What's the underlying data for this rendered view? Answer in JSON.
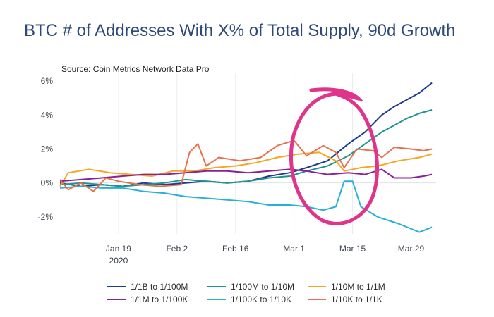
{
  "chart_data": {
    "type": "line",
    "title": "BTC # of Addresses With X% of Total Supply, 90d Growth",
    "source": "Source: Coin Metrics Network Data Pro",
    "ylim": [
      -3,
      6.5
    ],
    "yticks": [
      {
        "value": 6,
        "label": "6%"
      },
      {
        "value": 4,
        "label": "4%"
      },
      {
        "value": 2,
        "label": "2%"
      },
      {
        "value": 0,
        "label": "0%"
      },
      {
        "value": -2,
        "label": "-2%"
      }
    ],
    "xticks": [
      {
        "date": "2020-01-19",
        "label": "Jan 19",
        "sublabel": "2020"
      },
      {
        "date": "2020-02-02",
        "label": "Feb 2",
        "sublabel": ""
      },
      {
        "date": "2020-02-16",
        "label": "Feb 16",
        "sublabel": ""
      },
      {
        "date": "2020-03-01",
        "label": "Mar 1",
        "sublabel": ""
      },
      {
        "date": "2020-03-15",
        "label": "Mar 15",
        "sublabel": ""
      },
      {
        "date": "2020-03-29",
        "label": "Mar 29",
        "sublabel": ""
      }
    ],
    "x_range": [
      "2020-01-05",
      "2020-04-04"
    ],
    "grid": "vertical",
    "legend_position": "bottom",
    "series": [
      {
        "name": "1/1B to 1/100M",
        "color": "#1f3b8a",
        "points": [
          [
            "2020-01-05",
            0.0
          ],
          [
            "2020-01-10",
            -0.2
          ],
          [
            "2020-01-15",
            -0.1
          ],
          [
            "2020-01-20",
            -0.2
          ],
          [
            "2020-01-25",
            0.0
          ],
          [
            "2020-01-30",
            -0.1
          ],
          [
            "2020-02-04",
            0.0
          ],
          [
            "2020-02-09",
            0.1
          ],
          [
            "2020-02-14",
            0.0
          ],
          [
            "2020-02-19",
            0.1
          ],
          [
            "2020-02-24",
            0.4
          ],
          [
            "2020-02-29",
            0.6
          ],
          [
            "2020-03-04",
            0.9
          ],
          [
            "2020-03-09",
            1.3
          ],
          [
            "2020-03-14",
            2.3
          ],
          [
            "2020-03-18",
            3.0
          ],
          [
            "2020-03-22",
            4.0
          ],
          [
            "2020-03-25",
            4.5
          ],
          [
            "2020-03-28",
            4.9
          ],
          [
            "2020-03-31",
            5.3
          ],
          [
            "2020-04-03",
            5.9
          ]
        ]
      },
      {
        "name": "1/100M to 1/10M",
        "color": "#1f948e",
        "points": [
          [
            "2020-01-05",
            -0.1
          ],
          [
            "2020-01-10",
            0.0
          ],
          [
            "2020-01-15",
            -0.1
          ],
          [
            "2020-01-20",
            -0.2
          ],
          [
            "2020-01-25",
            -0.1
          ],
          [
            "2020-01-30",
            0.0
          ],
          [
            "2020-02-04",
            0.2
          ],
          [
            "2020-02-09",
            0.1
          ],
          [
            "2020-02-14",
            0.0
          ],
          [
            "2020-02-19",
            0.1
          ],
          [
            "2020-02-24",
            0.3
          ],
          [
            "2020-02-29",
            0.4
          ],
          [
            "2020-03-04",
            0.7
          ],
          [
            "2020-03-09",
            1.0
          ],
          [
            "2020-03-14",
            1.6
          ],
          [
            "2020-03-18",
            2.3
          ],
          [
            "2020-03-22",
            3.0
          ],
          [
            "2020-03-25",
            3.4
          ],
          [
            "2020-03-28",
            3.8
          ],
          [
            "2020-03-31",
            4.1
          ],
          [
            "2020-04-03",
            4.3
          ]
        ]
      },
      {
        "name": "1/10M to 1/1M",
        "color": "#f5a623",
        "points": [
          [
            "2020-01-05",
            -0.2
          ],
          [
            "2020-01-07",
            0.6
          ],
          [
            "2020-01-12",
            0.8
          ],
          [
            "2020-01-17",
            0.6
          ],
          [
            "2020-01-22",
            0.5
          ],
          [
            "2020-01-27",
            0.4
          ],
          [
            "2020-02-01",
            0.7
          ],
          [
            "2020-02-06",
            0.7
          ],
          [
            "2020-02-11",
            0.9
          ],
          [
            "2020-02-16",
            1.0
          ],
          [
            "2020-02-21",
            1.2
          ],
          [
            "2020-02-26",
            1.5
          ],
          [
            "2020-03-02",
            1.7
          ],
          [
            "2020-03-07",
            1.8
          ],
          [
            "2020-03-11",
            1.3
          ],
          [
            "2020-03-13",
            0.7
          ],
          [
            "2020-03-17",
            0.9
          ],
          [
            "2020-03-21",
            1.0
          ],
          [
            "2020-03-26",
            1.3
          ],
          [
            "2020-03-31",
            1.5
          ],
          [
            "2020-04-03",
            1.7
          ]
        ]
      },
      {
        "name": "1/1M to 1/100K",
        "color": "#8a1f9a",
        "points": [
          [
            "2020-01-05",
            0.1
          ],
          [
            "2020-01-10",
            0.2
          ],
          [
            "2020-01-15",
            0.3
          ],
          [
            "2020-01-20",
            0.4
          ],
          [
            "2020-01-25",
            0.5
          ],
          [
            "2020-01-30",
            0.5
          ],
          [
            "2020-02-04",
            0.6
          ],
          [
            "2020-02-09",
            0.7
          ],
          [
            "2020-02-14",
            0.7
          ],
          [
            "2020-02-19",
            0.6
          ],
          [
            "2020-02-24",
            0.7
          ],
          [
            "2020-02-29",
            0.8
          ],
          [
            "2020-03-04",
            0.7
          ],
          [
            "2020-03-09",
            0.5
          ],
          [
            "2020-03-14",
            0.6
          ],
          [
            "2020-03-18",
            0.5
          ],
          [
            "2020-03-22",
            0.8
          ],
          [
            "2020-03-25",
            0.3
          ],
          [
            "2020-03-29",
            0.3
          ],
          [
            "2020-04-01",
            0.4
          ],
          [
            "2020-04-03",
            0.5
          ]
        ]
      },
      {
        "name": "1/100K to 1/10K",
        "color": "#29b0d4",
        "points": [
          [
            "2020-01-05",
            -0.3
          ],
          [
            "2020-01-10",
            -0.2
          ],
          [
            "2020-01-15",
            -0.3
          ],
          [
            "2020-01-20",
            -0.3
          ],
          [
            "2020-01-25",
            -0.5
          ],
          [
            "2020-01-30",
            -0.6
          ],
          [
            "2020-02-04",
            -0.8
          ],
          [
            "2020-02-09",
            -0.9
          ],
          [
            "2020-02-14",
            -1.0
          ],
          [
            "2020-02-19",
            -1.1
          ],
          [
            "2020-02-24",
            -1.3
          ],
          [
            "2020-02-29",
            -1.3
          ],
          [
            "2020-03-04",
            -1.4
          ],
          [
            "2020-03-08",
            -1.6
          ],
          [
            "2020-03-11",
            -1.4
          ],
          [
            "2020-03-13",
            0.1
          ],
          [
            "2020-03-15",
            0.1
          ],
          [
            "2020-03-17",
            -1.4
          ],
          [
            "2020-03-21",
            -2.0
          ],
          [
            "2020-03-26",
            -2.4
          ],
          [
            "2020-03-31",
            -2.9
          ],
          [
            "2020-04-03",
            -2.6
          ]
        ]
      },
      {
        "name": "1/10K to 1/1K",
        "color": "#e8704e",
        "points": [
          [
            "2020-01-05",
            0.2
          ],
          [
            "2020-01-07",
            -0.4
          ],
          [
            "2020-01-10",
            0.0
          ],
          [
            "2020-01-13",
            -0.5
          ],
          [
            "2020-01-16",
            0.3
          ],
          [
            "2020-01-19",
            0.1
          ],
          [
            "2020-01-24",
            -0.1
          ],
          [
            "2020-01-29",
            -0.2
          ],
          [
            "2020-02-03",
            -0.1
          ],
          [
            "2020-02-05",
            1.8
          ],
          [
            "2020-02-07",
            2.3
          ],
          [
            "2020-02-09",
            1.0
          ],
          [
            "2020-02-12",
            1.5
          ],
          [
            "2020-02-17",
            1.3
          ],
          [
            "2020-02-22",
            1.5
          ],
          [
            "2020-02-26",
            2.2
          ],
          [
            "2020-03-01",
            2.5
          ],
          [
            "2020-03-04",
            1.6
          ],
          [
            "2020-03-08",
            2.2
          ],
          [
            "2020-03-11",
            1.8
          ],
          [
            "2020-03-13",
            0.9
          ],
          [
            "2020-03-16",
            2.0
          ],
          [
            "2020-03-20",
            1.9
          ],
          [
            "2020-03-22",
            1.5
          ],
          [
            "2020-03-25",
            2.1
          ],
          [
            "2020-03-29",
            2.0
          ],
          [
            "2020-04-01",
            1.9
          ],
          [
            "2020-04-03",
            2.0
          ]
        ]
      }
    ]
  }
}
